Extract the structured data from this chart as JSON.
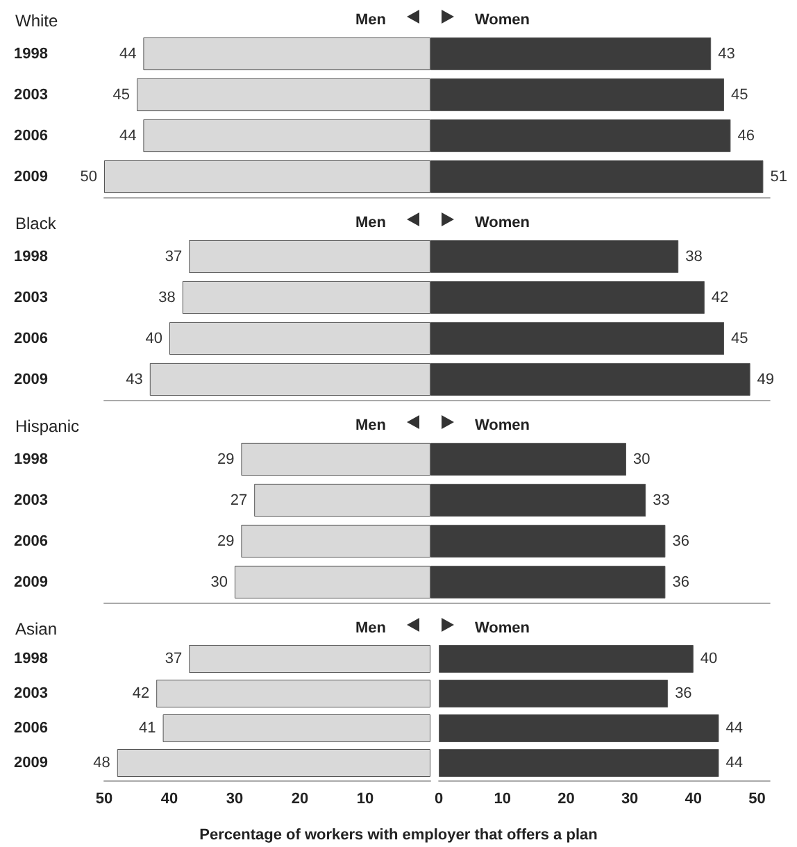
{
  "chart_data": [
    {
      "type": "bar",
      "orientation": "horizontal",
      "title": "White",
      "categories": [
        "1998",
        "2003",
        "2006",
        "2009"
      ],
      "legend": "top right",
      "tick_labels": "y",
      "xlim": [
        50,
        0
      ],
      "series": [
        {
          "name": "Men",
          "color": "#d9d9d9",
          "values": [
            44,
            45,
            44,
            50
          ]
        }
      ],
      "data_labels": true
    },
    {
      "type": "bar",
      "orientation": "horizontal",
      "categories": [
        "1998",
        "2003",
        "2006",
        "2009"
      ],
      "legend": "top left",
      "tick_labels": false,
      "xlim": [
        0,
        52
      ],
      "series": [
        {
          "name": "Women",
          "color": "#3c3c3c",
          "values": [
            43,
            45,
            46,
            51
          ]
        }
      ],
      "data_labels": true
    },
    {
      "type": "bar",
      "orientation": "horizontal",
      "title": "Black",
      "categories": [
        "1998",
        "2003",
        "2006",
        "2009"
      ],
      "legend": "top right",
      "tick_labels": "y",
      "xlim": [
        50,
        0
      ],
      "series": [
        {
          "name": "Men",
          "color": "#d9d9d9",
          "values": [
            37,
            38,
            40,
            43
          ]
        }
      ],
      "data_labels": true
    },
    {
      "type": "bar",
      "orientation": "horizontal",
      "categories": [
        "1998",
        "2003",
        "2006",
        "2009"
      ],
      "legend": "top left",
      "tick_labels": false,
      "xlim": [
        0,
        52
      ],
      "series": [
        {
          "name": "Women",
          "color": "#3c3c3c",
          "values": [
            38,
            42,
            45,
            49
          ]
        }
      ],
      "data_labels": true
    },
    {
      "type": "bar",
      "orientation": "horizontal",
      "title": "Hispanic",
      "categories": [
        "1998",
        "2003",
        "2006",
        "2009"
      ],
      "legend": "top right",
      "tick_labels": "y",
      "xlim": [
        50,
        0
      ],
      "series": [
        {
          "name": "Men",
          "color": "#d9d9d9",
          "values": [
            29,
            27,
            29,
            30
          ]
        }
      ],
      "data_labels": true
    },
    {
      "type": "bar",
      "orientation": "horizontal",
      "categories": [
        "1998",
        "2003",
        "2006",
        "2009"
      ],
      "legend": "top left",
      "tick_labels": false,
      "xlim": [
        0,
        52
      ],
      "series": [
        {
          "name": "Women",
          "color": "#3c3c3c",
          "values": [
            30,
            33,
            36,
            36
          ]
        }
      ],
      "data_labels": true
    },
    {
      "type": "bar",
      "orientation": "horizontal",
      "title": "Asian",
      "categories": [
        "1998",
        "2003",
        "2006",
        "2009"
      ],
      "legend": "top right",
      "xlim": [
        50,
        0
      ],
      "xticks": [
        50,
        40,
        30,
        20,
        10
      ],
      "series": [
        {
          "name": "Men",
          "color": "#d9d9d9",
          "values": [
            37,
            42,
            41,
            48
          ]
        }
      ],
      "data_labels": true
    },
    {
      "type": "bar",
      "orientation": "horizontal",
      "categories": [
        "1998",
        "2003",
        "2006",
        "2009"
      ],
      "legend": "top left",
      "tick_labels": "x",
      "xlim": [
        0,
        52
      ],
      "xticks": [
        0,
        10,
        20,
        30,
        40,
        50
      ],
      "xlabel": "Percentage of workers with employer that offers a plan",
      "series": [
        {
          "name": "Women",
          "color": "#3c3c3c",
          "values": [
            40,
            36,
            44,
            44
          ]
        }
      ],
      "data_labels": true
    }
  ]
}
